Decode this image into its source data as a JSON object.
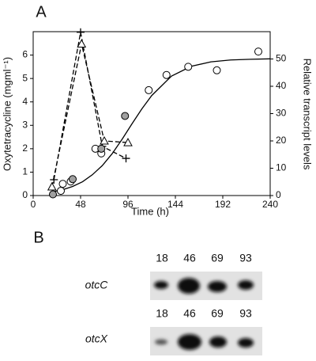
{
  "chart_data": {
    "type": "line",
    "panel_label": "A",
    "xlabel": "Time (h)",
    "ylabel": "Oxytetracycline (mgml⁻¹)",
    "y2label": "Relative transcript levels",
    "xlim": [
      0,
      240
    ],
    "xticks": [
      0,
      48,
      96,
      144,
      192,
      240
    ],
    "ylim": [
      0,
      7
    ],
    "yticks": [
      0,
      1,
      2,
      3,
      4,
      5,
      6
    ],
    "y2lim": [
      0,
      60
    ],
    "y2ticks": [
      0,
      10,
      20,
      30,
      40,
      50
    ],
    "series": [
      {
        "color": "#000000",
        "marker": "none",
        "dash": false,
        "axis": "y",
        "x": [
          20,
          30,
          40,
          50,
          60,
          70,
          80,
          90,
          100,
          110,
          120,
          140,
          160,
          180,
          200,
          220,
          240
        ],
        "values": [
          0.16,
          0.25,
          0.39,
          0.59,
          0.89,
          1.28,
          1.79,
          2.4,
          3.06,
          3.7,
          4.27,
          5.1,
          5.52,
          5.71,
          5.79,
          5.82,
          5.84
        ]
      },
      {
        "color": "#000000",
        "marker": "plus",
        "dash": true,
        "axis": "y2",
        "x": [
          21,
          48,
          70,
          94
        ],
        "values": [
          5.8,
          59.8,
          18,
          13.6
        ]
      },
      {
        "color": "#000000",
        "marker": "triangle",
        "dash": true,
        "axis": "y2",
        "x": [
          19,
          49,
          72,
          96
        ],
        "values": [
          3.2,
          55.5,
          20,
          19.4
        ]
      },
      {
        "color": "#000000",
        "marker": "circle-open",
        "dash": false,
        "axis": "y",
        "x": [
          28,
          30,
          38,
          63,
          69,
          117,
          135,
          157,
          186,
          228
        ],
        "values": [
          0.2,
          0.5,
          0.6,
          2.0,
          1.8,
          4.5,
          5.15,
          5.5,
          5.35,
          6.15
        ]
      },
      {
        "color": "#a0a0a0",
        "marker": "circle-filled",
        "dash": false,
        "axis": "y",
        "x": [
          20,
          40,
          69,
          93
        ],
        "values": [
          0.05,
          0.7,
          2.0,
          3.4
        ]
      }
    ]
  },
  "blot": {
    "panel_label": "B",
    "rows": [
      {
        "gene": "otcC",
        "lanes": [
          "18",
          "46",
          "69",
          "93"
        ]
      },
      {
        "gene": "otcX",
        "lanes": [
          "18",
          "46",
          "69",
          "93"
        ]
      }
    ]
  }
}
